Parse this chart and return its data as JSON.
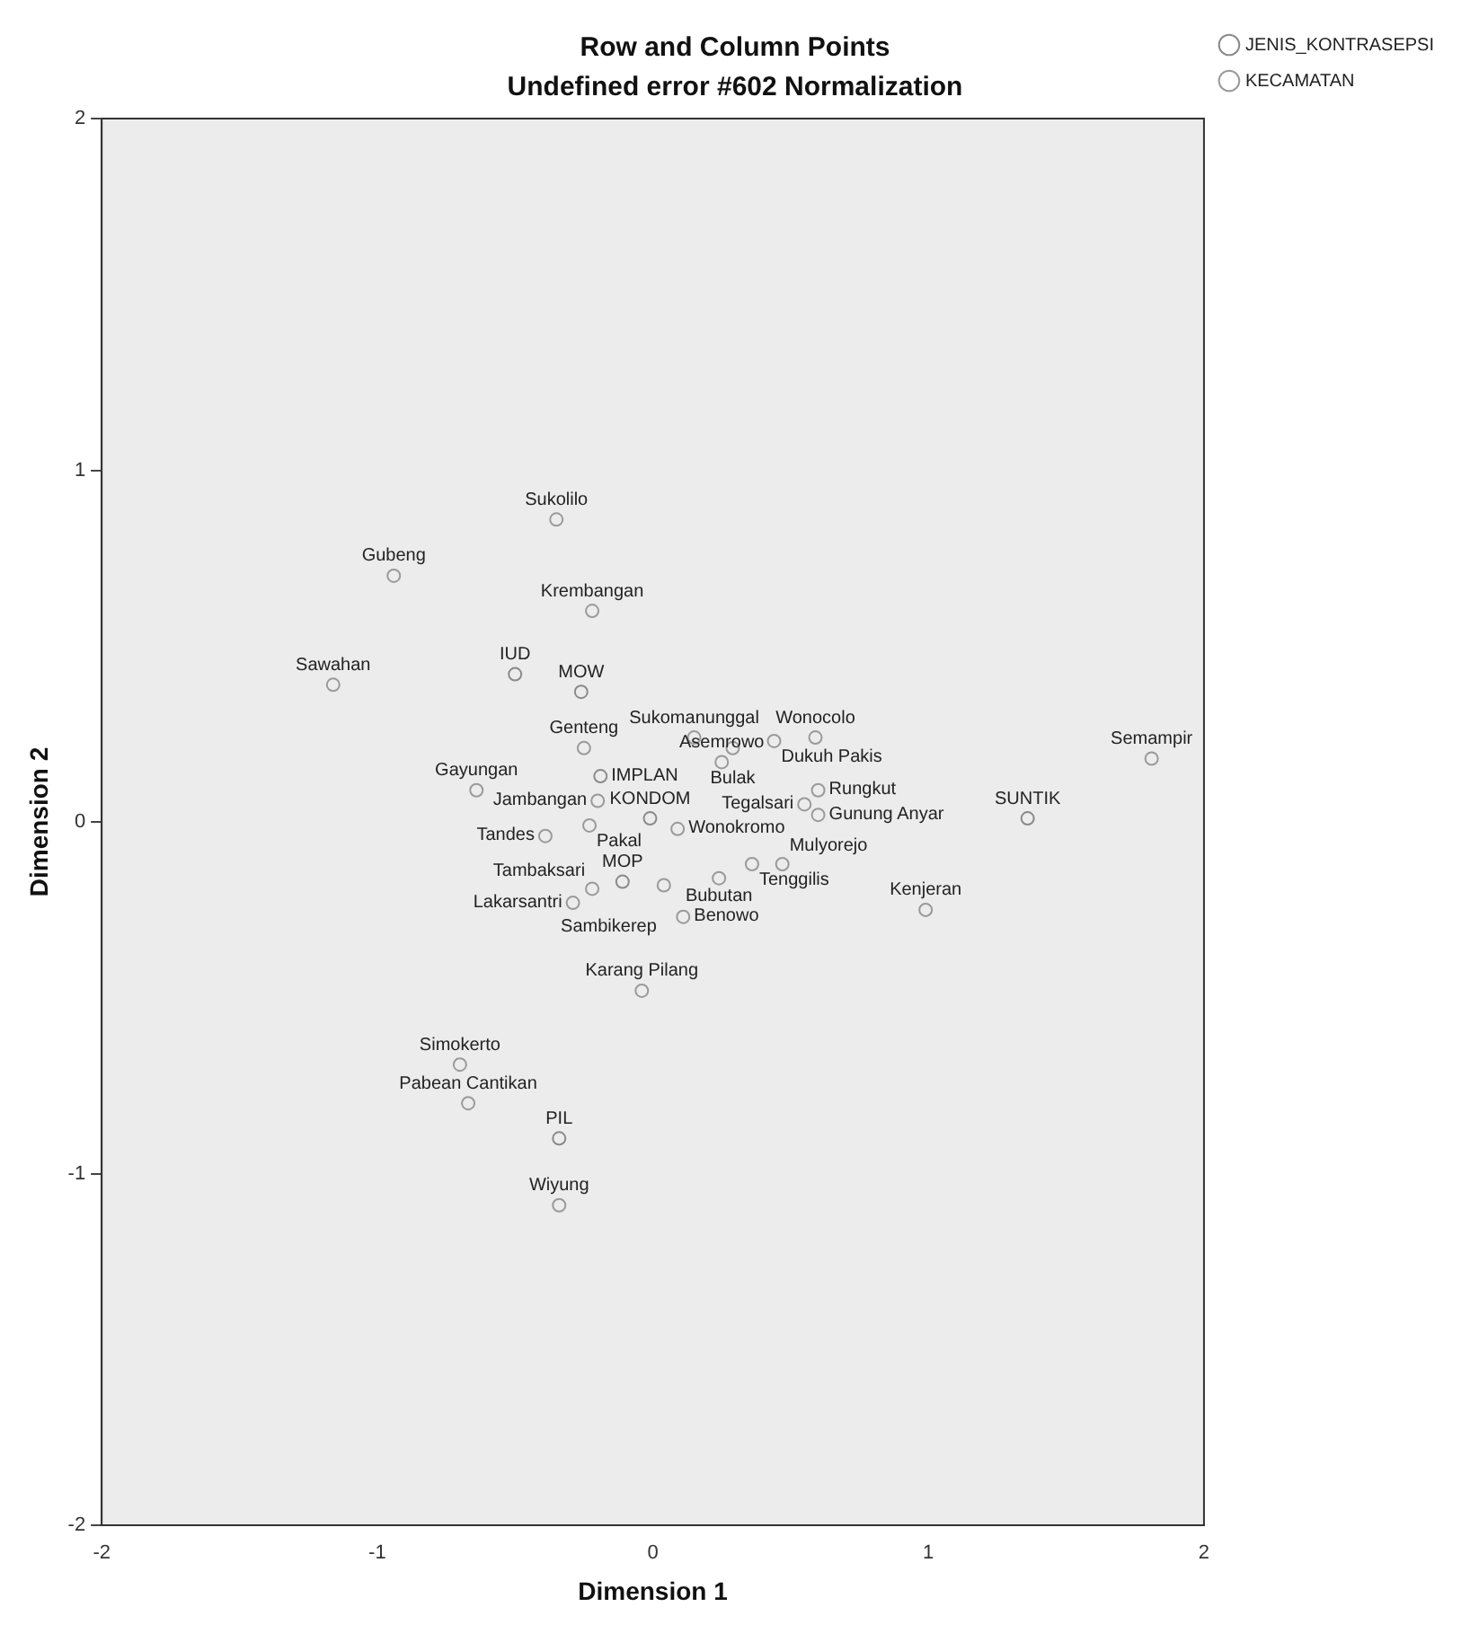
{
  "chart_data": {
    "type": "scatter",
    "title": "Row and Column Points",
    "subtitle": "Undefined error #602 Normalization",
    "xlabel": "Dimension 1",
    "ylabel": "Dimension 2",
    "xlim": [
      -2,
      2
    ],
    "ylim": [
      -2,
      2
    ],
    "xticks": [
      -2,
      -1,
      0,
      1,
      2
    ],
    "yticks": [
      -2,
      -1,
      0,
      1,
      2
    ],
    "grid": false,
    "legend": "top right",
    "marker": "circle",
    "series": [
      {
        "name": "JENIS_KONTRASEPSI",
        "color": "#8a8a8a",
        "x": [
          -0.5,
          -0.26,
          -0.19,
          -0.01,
          -0.11,
          1.36,
          -0.34
        ],
        "values": [
          0.42,
          0.37,
          0.13,
          0.01,
          -0.17,
          0.01,
          -0.9
        ],
        "value_labels": [
          "IUD",
          "MOW",
          "IMPLAN",
          "KONDOM",
          "MOP",
          "SUNTIK",
          "PIL"
        ]
      },
      {
        "name": "KECAMATAN",
        "color": "#9a9a9a",
        "x": [
          -0.35,
          -0.94,
          -0.22,
          -1.16,
          0.44,
          0.59,
          0.15,
          0.29,
          -0.25,
          0.25,
          0.6,
          -0.64,
          -0.2,
          0.55,
          0.6,
          1.81,
          -0.39,
          0.09,
          -0.23,
          0.36,
          0.47,
          0.99,
          -0.22,
          0.24,
          -0.29,
          0.04,
          0.11,
          -0.04,
          -0.7,
          -0.67,
          -0.34
        ],
        "values": [
          0.86,
          0.7,
          0.6,
          0.39,
          0.23,
          0.24,
          0.24,
          0.21,
          0.21,
          0.17,
          0.09,
          0.09,
          0.06,
          0.05,
          0.02,
          0.18,
          -0.04,
          -0.02,
          -0.01,
          -0.12,
          -0.12,
          -0.25,
          -0.19,
          -0.16,
          -0.23,
          -0.18,
          -0.27,
          -0.48,
          -0.69,
          -0.8,
          -1.09
        ],
        "value_labels": [
          "Sukolilo",
          "Gubeng",
          "Krembangan",
          "Sawahan",
          "Dukuh Pakis",
          "Wonocolo",
          "Sukomanunggal",
          "Bulak",
          "Genteng",
          "Asemrowo",
          "Rungkut",
          "Gayungan",
          "Jambangan",
          "Tegalsari",
          "Gunung Anyar",
          "Semampir",
          "Tandes",
          "Wonokromo",
          "Pakal",
          "Tenggilis",
          "Mulyorejo",
          "Kenjeran",
          "Tambaksari",
          "Bubutan",
          "Lakarsantri",
          "Sambikerep",
          "Benowo",
          "Karang Pilang",
          "Simokerto",
          "Pabean Cantikan",
          "Wiyung"
        ]
      }
    ]
  }
}
